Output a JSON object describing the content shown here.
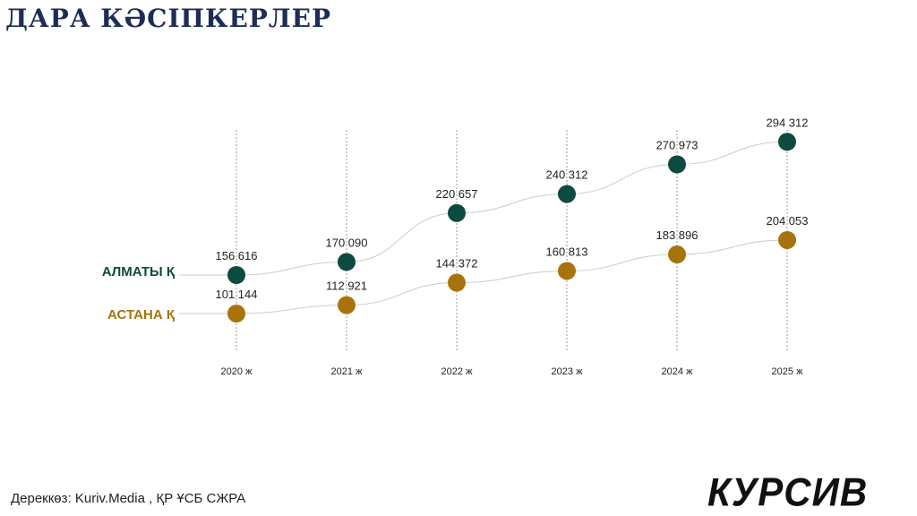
{
  "title": "ДАРА КӘСІПКЕРЛЕР",
  "source": "Дереккөз: Kuriv.Media , ҚР ҰСБ СЖРА",
  "logo": "КУРСИВ",
  "chart_data": {
    "type": "line",
    "title": "ДАРА КӘСІПКЕРЛЕР",
    "categories": [
      "2020 ж",
      "2021 ж",
      "2022 ж",
      "2023 ж",
      "2024 ж",
      "2025 ж"
    ],
    "series": [
      {
        "name": "АЛМАТЫ Қ",
        "color": "#0d4a40",
        "values": [
          156616,
          170090,
          220657,
          240312,
          270973,
          294312
        ],
        "labels": [
          "156 616",
          "170 090",
          "220 657",
          "240 312",
          "270 973",
          "294 312"
        ]
      },
      {
        "name": "АСТАНА Қ",
        "color": "#a8730b",
        "values": [
          101144,
          112921,
          144372,
          160813,
          183896,
          204053
        ],
        "labels": [
          "101 144",
          "112 921",
          "144 372",
          "160 813",
          "183 896",
          "204 053"
        ]
      }
    ],
    "grid": "vertical dotted",
    "legend": "left"
  }
}
